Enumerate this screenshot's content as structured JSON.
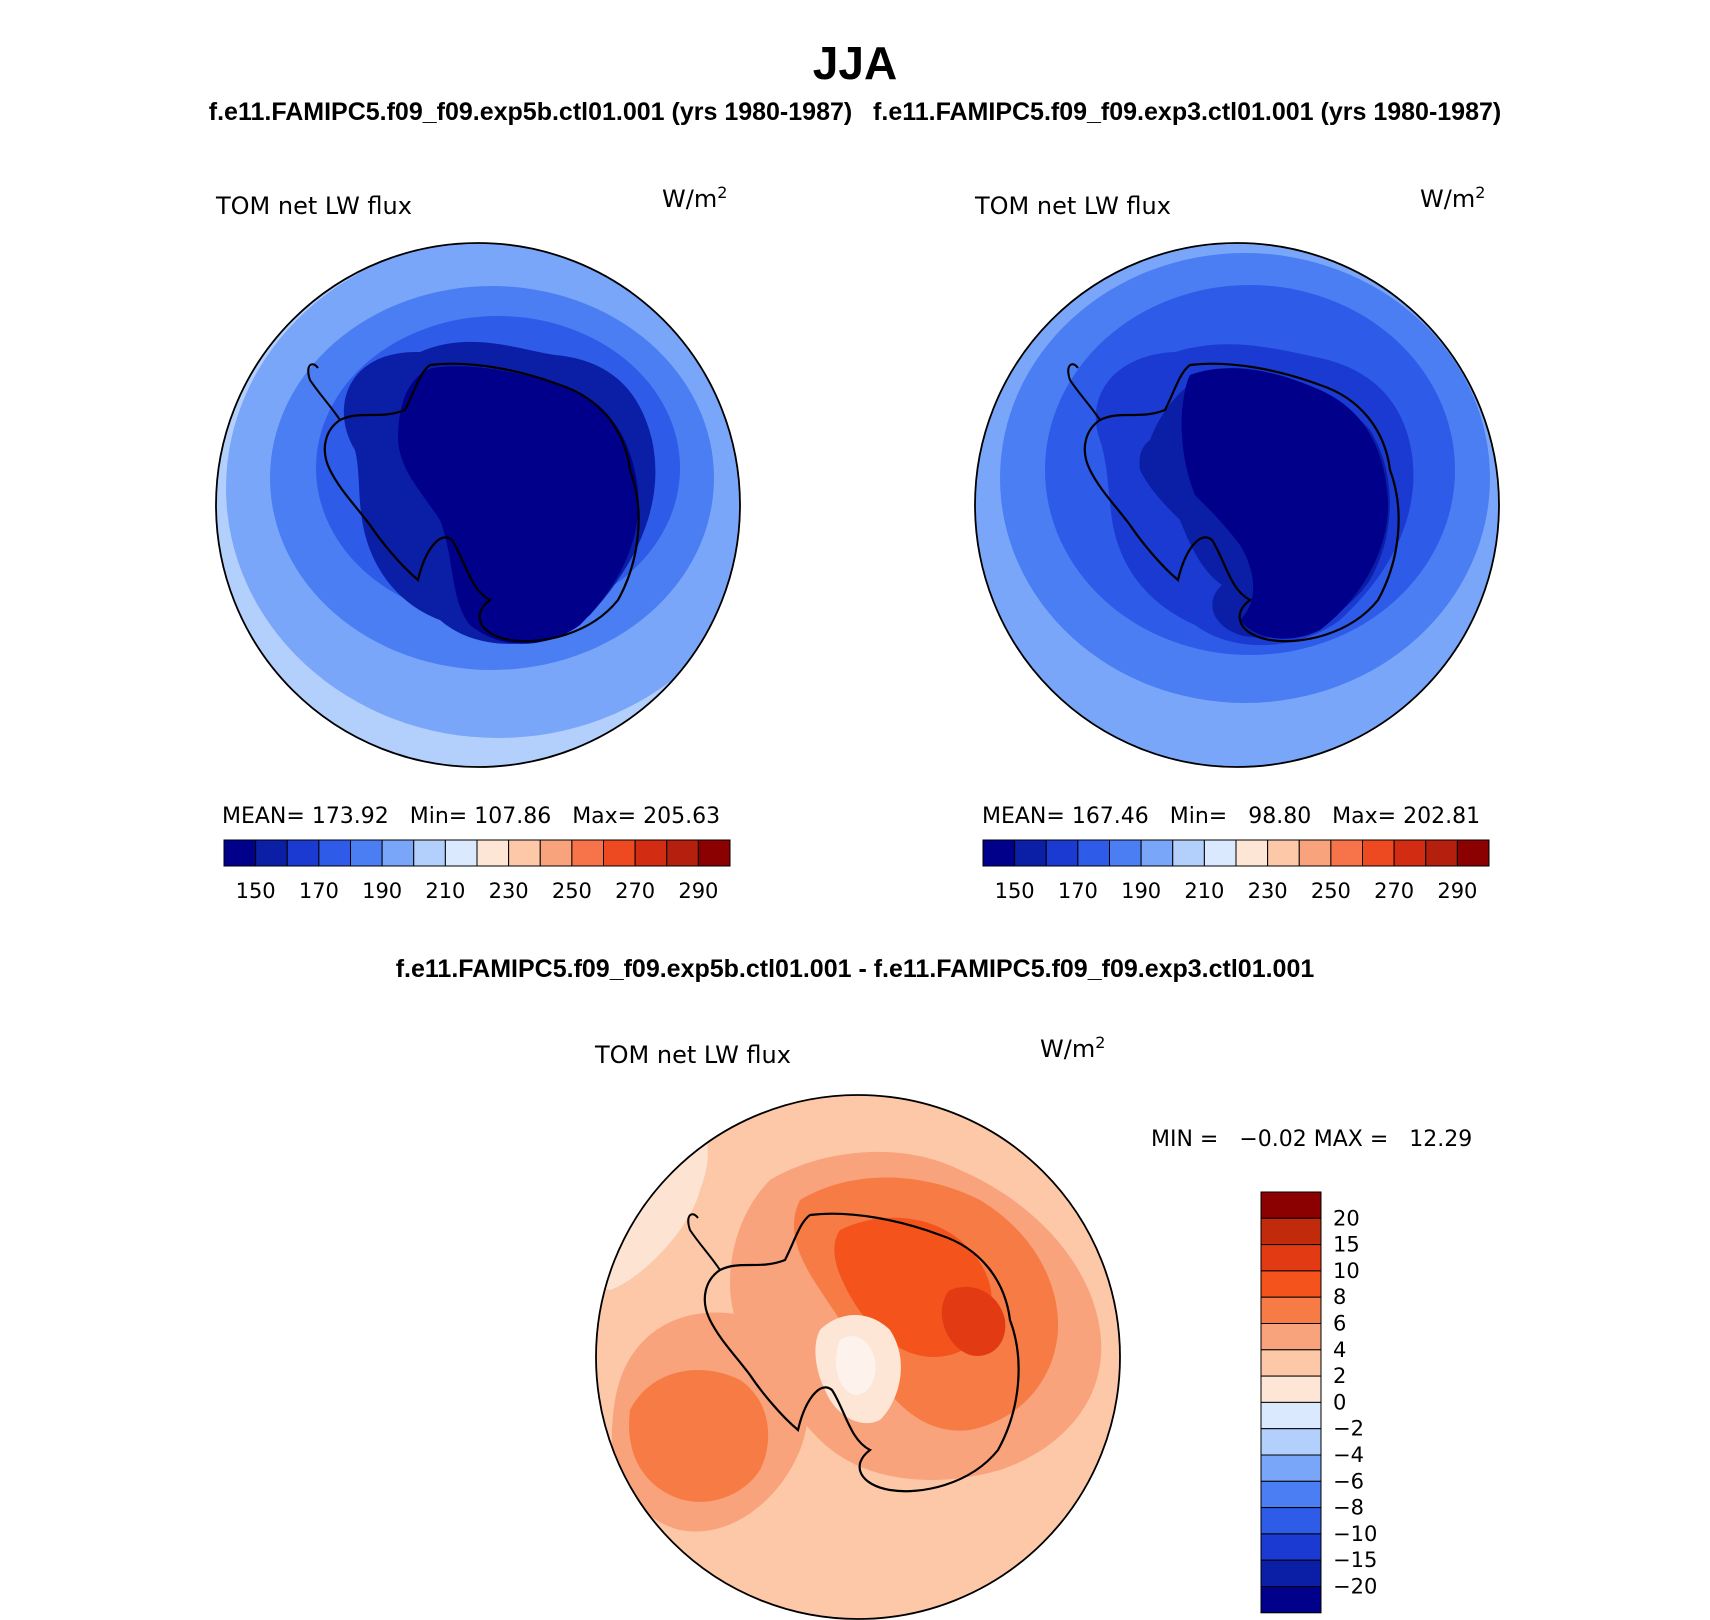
{
  "title": "JJA",
  "top_subtitles": [
    "f.e11.FAMIPC5.f09_f09.exp5b.ctl01.001 (yrs 1980-1987)",
    "f.e11.FAMIPC5.f09_f09.exp3.ctl01.001 (yrs 1980-1987)"
  ],
  "diff_subtitle": "f.e11.FAMIPC5.f09_f09.exp5b.ctl01.001 - f.e11.FAMIPC5.f09_f09.exp3.ctl01.001",
  "panels": [
    {
      "variable": "TOM net LW flux",
      "units_base": "W/m",
      "units_exp": "2",
      "stats": "MEAN= 173.92   Min= 107.86   Max= 205.63",
      "colorbar_labels": [
        "150",
        "170",
        "190",
        "210",
        "230",
        "250",
        "270",
        "290"
      ]
    },
    {
      "variable": "TOM net LW flux",
      "units_base": "W/m",
      "units_exp": "2",
      "stats": "MEAN= 167.46   Min=   98.80   Max= 202.81",
      "colorbar_labels": [
        "150",
        "170",
        "190",
        "210",
        "230",
        "250",
        "270",
        "290"
      ]
    },
    {
      "variable": "TOM net LW flux",
      "units_base": "W/m",
      "units_exp": "2",
      "stats": "MIN =   −0.02 MAX =   12.29",
      "colorbar_labels": [
        "20",
        "15",
        "10",
        "8",
        "6",
        "4",
        "2",
        "0",
        "−2",
        "−4",
        "−6",
        "−8",
        "−10",
        "−15",
        "−20"
      ]
    }
  ],
  "abs_colors": [
    "#00008b",
    "#0a1fa6",
    "#1a3ad1",
    "#2e5be8",
    "#4a7ef2",
    "#7aa6f9",
    "#b3cffc",
    "#dbe9fe",
    "#fde6d6",
    "#fcc8a8",
    "#f9a37c",
    "#f7744a",
    "#ee4a21",
    "#d22d12",
    "#b5200e",
    "#8b0000"
  ],
  "diff_colors": [
    "#8b0000",
    "#c22a0c",
    "#e23a12",
    "#f4541c",
    "#f77b45",
    "#f9a37c",
    "#fcc8a8",
    "#fde6d6",
    "#dbe9fe",
    "#b3cffc",
    "#7aa6f9",
    "#4a7ef2",
    "#2e5be8",
    "#1a3ad1",
    "#0a1fa6",
    "#00008b"
  ]
}
